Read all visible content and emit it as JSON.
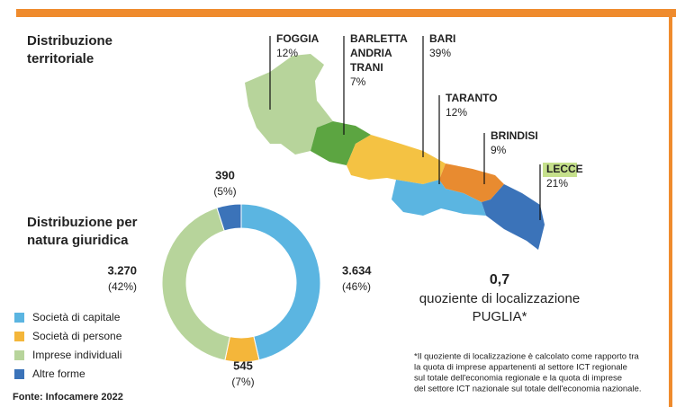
{
  "header": {
    "territorial_title": [
      "Distribuzione",
      "territoriale"
    ],
    "legal_title": [
      "Distribuzione per",
      "natura giuridica"
    ]
  },
  "map": {
    "provinces": [
      {
        "name": [
          "FOGGIA"
        ],
        "share": "12%",
        "color": "#b7d49b"
      },
      {
        "name": [
          "BARLETTA",
          "ANDRIA",
          "TRANI"
        ],
        "share": "7%",
        "color": "#5ca541"
      },
      {
        "name": [
          "BARI"
        ],
        "share": "39%",
        "color": "#f4c243"
      },
      {
        "name": [
          "TARANTO"
        ],
        "share": "12%",
        "color": "#5bb5e1"
      },
      {
        "name": [
          "BRINDISI"
        ],
        "share": "9%",
        "color": "#e88b30"
      },
      {
        "name": [
          "LECCE"
        ],
        "share": "21%",
        "color": "#3b73b9"
      }
    ]
  },
  "quotient": {
    "value": "0,7",
    "label": "quoziente di localizzazione",
    "region": "PUGLIA*"
  },
  "chart_data": {
    "type": "donut",
    "categories": [
      "Società di capitale",
      "Società di persone",
      "Imprese individuali",
      "Altre forme"
    ],
    "values": [
      3634,
      545,
      3270,
      390
    ],
    "value_labels": [
      "3.634",
      "545",
      "3.270",
      "390"
    ],
    "shares": [
      46,
      7,
      42,
      5
    ],
    "share_labels": [
      "(46%)",
      "(7%)",
      "(42%)",
      "(5%)"
    ],
    "colors": [
      "#5bb5e1",
      "#f4b63a",
      "#b7d49b",
      "#3b73b9"
    ]
  },
  "footnote": [
    "*Il quoziente di localizzazione è calcolato come rapporto tra",
    "la quota di imprese appartenenti al settore ICT regionale",
    "sul totale dell'economia regionale e la quota di imprese",
    "del settore ICT nazionale sul totale dell'economia nazionale."
  ],
  "source": "Fonte: Infocamere 2022"
}
